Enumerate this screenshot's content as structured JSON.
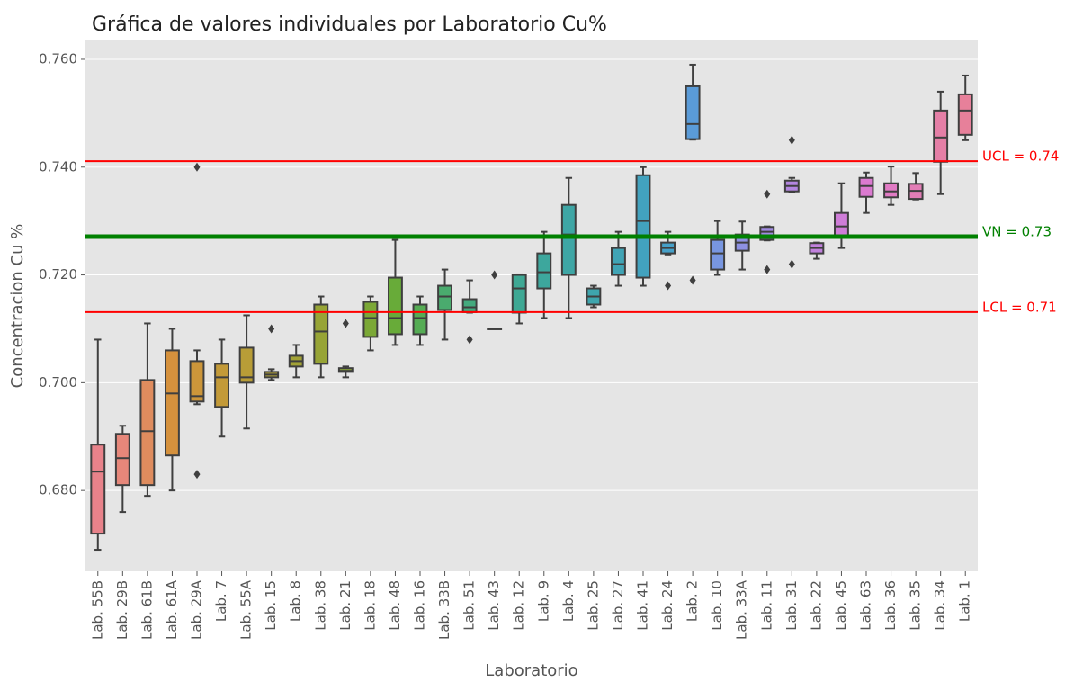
{
  "chart_data": {
    "type": "box",
    "title": "Gráfica de valores individuales por Laboratorio Cu%",
    "xlabel": "Laboratorio",
    "ylabel": "Concentracion Cu %",
    "categories": [
      "Lab. 55B",
      "Lab. 29B",
      "Lab. 61B",
      "Lab. 61A",
      "Lab. 29A",
      "Lab. 7",
      "Lab. 55A",
      "Lab. 15",
      "Lab. 8",
      "Lab. 38",
      "Lab. 21",
      "Lab. 18",
      "Lab. 48",
      "Lab. 16",
      "Lab. 33B",
      "Lab. 51",
      "Lab. 43",
      "Lab. 12",
      "Lab. 9",
      "Lab. 4",
      "Lab. 25",
      "Lab. 27",
      "Lab. 41",
      "Lab. 24",
      "Lab. 2",
      "Lab. 10",
      "Lab. 33A",
      "Lab. 11",
      "Lab. 31",
      "Lab. 22",
      "Lab. 45",
      "Lab. 63",
      "Lab. 36",
      "Lab. 35",
      "Lab. 34",
      "Lab. 1"
    ],
    "boxes": [
      {
        "whislo": 0.669,
        "q1": 0.672,
        "med": 0.6835,
        "q3": 0.6885,
        "whishi": 0.708,
        "fliers": []
      },
      {
        "whislo": 0.676,
        "q1": 0.681,
        "med": 0.686,
        "q3": 0.6905,
        "whishi": 0.692,
        "fliers": []
      },
      {
        "whislo": 0.679,
        "q1": 0.681,
        "med": 0.691,
        "q3": 0.7005,
        "whishi": 0.711,
        "fliers": []
      },
      {
        "whislo": 0.68,
        "q1": 0.6865,
        "med": 0.698,
        "q3": 0.706,
        "whishi": 0.71,
        "fliers": []
      },
      {
        "whislo": 0.696,
        "q1": 0.6965,
        "med": 0.6975,
        "q3": 0.704,
        "whishi": 0.706,
        "fliers": [
          0.683,
          0.74
        ]
      },
      {
        "whislo": 0.69,
        "q1": 0.6955,
        "med": 0.701,
        "q3": 0.7035,
        "whishi": 0.708,
        "fliers": []
      },
      {
        "whislo": 0.6915,
        "q1": 0.7,
        "med": 0.701,
        "q3": 0.7065,
        "whishi": 0.7125,
        "fliers": []
      },
      {
        "whislo": 0.7005,
        "q1": 0.701,
        "med": 0.7015,
        "q3": 0.702,
        "whishi": 0.7025,
        "fliers": [
          0.71
        ]
      },
      {
        "whislo": 0.701,
        "q1": 0.703,
        "med": 0.704,
        "q3": 0.705,
        "whishi": 0.707,
        "fliers": []
      },
      {
        "whislo": 0.701,
        "q1": 0.7035,
        "med": 0.7095,
        "q3": 0.7145,
        "whishi": 0.716,
        "fliers": []
      },
      {
        "whislo": 0.701,
        "q1": 0.702,
        "med": 0.7022,
        "q3": 0.7027,
        "whishi": 0.703,
        "fliers": [
          0.711
        ]
      },
      {
        "whislo": 0.706,
        "q1": 0.7085,
        "med": 0.712,
        "q3": 0.715,
        "whishi": 0.716,
        "fliers": []
      },
      {
        "whislo": 0.707,
        "q1": 0.709,
        "med": 0.712,
        "q3": 0.7195,
        "whishi": 0.7265,
        "fliers": []
      },
      {
        "whislo": 0.707,
        "q1": 0.709,
        "med": 0.712,
        "q3": 0.7145,
        "whishi": 0.716,
        "fliers": []
      },
      {
        "whislo": 0.708,
        "q1": 0.7135,
        "med": 0.716,
        "q3": 0.718,
        "whishi": 0.721,
        "fliers": []
      },
      {
        "whislo": 0.713,
        "q1": 0.7131,
        "med": 0.714,
        "q3": 0.7155,
        "whishi": 0.719,
        "fliers": [
          0.708
        ]
      },
      {
        "whislo": 0.71,
        "q1": 0.71,
        "med": 0.71,
        "q3": 0.71,
        "whishi": 0.71,
        "fliers": [
          0.72
        ]
      },
      {
        "whislo": 0.711,
        "q1": 0.713,
        "med": 0.7175,
        "q3": 0.72,
        "whishi": 0.7201,
        "fliers": []
      },
      {
        "whislo": 0.712,
        "q1": 0.7175,
        "med": 0.7205,
        "q3": 0.724,
        "whishi": 0.728,
        "fliers": []
      },
      {
        "whislo": 0.712,
        "q1": 0.72,
        "med": 0.7275,
        "q3": 0.733,
        "whishi": 0.738,
        "fliers": []
      },
      {
        "whislo": 0.714,
        "q1": 0.7145,
        "med": 0.716,
        "q3": 0.7175,
        "whishi": 0.718,
        "fliers": []
      },
      {
        "whislo": 0.718,
        "q1": 0.72,
        "med": 0.722,
        "q3": 0.725,
        "whishi": 0.728,
        "fliers": []
      },
      {
        "whislo": 0.718,
        "q1": 0.7195,
        "med": 0.73,
        "q3": 0.7385,
        "whishi": 0.74,
        "fliers": []
      },
      {
        "whislo": 0.7238,
        "q1": 0.724,
        "med": 0.725,
        "q3": 0.726,
        "whishi": 0.728,
        "fliers": [
          0.718
        ]
      },
      {
        "whislo": 0.7451,
        "q1": 0.7452,
        "med": 0.748,
        "q3": 0.755,
        "whishi": 0.759,
        "fliers": [
          0.719
        ]
      },
      {
        "whislo": 0.72,
        "q1": 0.721,
        "med": 0.724,
        "q3": 0.7265,
        "whishi": 0.73,
        "fliers": []
      },
      {
        "whislo": 0.721,
        "q1": 0.7245,
        "med": 0.726,
        "q3": 0.7275,
        "whishi": 0.7299,
        "fliers": []
      },
      {
        "whislo": 0.7264,
        "q1": 0.7265,
        "med": 0.728,
        "q3": 0.7289,
        "whishi": 0.729,
        "fliers": [
          0.735,
          0.721
        ]
      },
      {
        "whislo": 0.7354,
        "q1": 0.7355,
        "med": 0.7365,
        "q3": 0.7375,
        "whishi": 0.738,
        "fliers": [
          0.745,
          0.722
        ]
      },
      {
        "whislo": 0.723,
        "q1": 0.724,
        "med": 0.725,
        "q3": 0.7259,
        "whishi": 0.726,
        "fliers": []
      },
      {
        "whislo": 0.725,
        "q1": 0.727,
        "med": 0.729,
        "q3": 0.7315,
        "whishi": 0.737,
        "fliers": []
      },
      {
        "whislo": 0.7315,
        "q1": 0.7345,
        "med": 0.7365,
        "q3": 0.738,
        "whishi": 0.739,
        "fliers": []
      },
      {
        "whislo": 0.733,
        "q1": 0.7344,
        "med": 0.7355,
        "q3": 0.737,
        "whishi": 0.7401,
        "fliers": []
      },
      {
        "whislo": 0.734,
        "q1": 0.7341,
        "med": 0.7356,
        "q3": 0.7369,
        "whishi": 0.7389,
        "fliers": []
      },
      {
        "whislo": 0.735,
        "q1": 0.741,
        "med": 0.7455,
        "q3": 0.7505,
        "whishi": 0.754,
        "fliers": []
      },
      {
        "whislo": 0.745,
        "q1": 0.746,
        "med": 0.7505,
        "q3": 0.7535,
        "whishi": 0.757,
        "fliers": []
      }
    ],
    "colors": [
      "#e8828a",
      "#e6877a",
      "#df8c5e",
      "#d5913d",
      "#cc963a",
      "#c39a38",
      "#b89d37",
      "#ad9f37",
      "#a2a236",
      "#97a436",
      "#8aa636",
      "#7ba836",
      "#68ab39",
      "#55ac54",
      "#4aab6e",
      "#44aa7e",
      "#41a98a",
      "#3ea894",
      "#3da79d",
      "#3ea6a5",
      "#3ea5ad",
      "#40a4b5",
      "#42a2be",
      "#46a0c8",
      "#5a9bd8",
      "#7896e0",
      "#8e91e2",
      "#a18be2",
      "#b386e0",
      "#c181dd",
      "#cf7dd8",
      "#db7ad0",
      "#e17bc4",
      "#e37db6",
      "#e47fa6",
      "#e7809a"
    ],
    "ylim": [
      0.665,
      0.7635
    ],
    "yticks": [
      {
        "value": 0.68,
        "label": "0.680"
      },
      {
        "value": 0.7,
        "label": "0.700"
      },
      {
        "value": 0.72,
        "label": "0.720"
      },
      {
        "value": 0.74,
        "label": "0.740"
      },
      {
        "value": 0.76,
        "label": "0.760"
      }
    ],
    "grid": true,
    "hlines": [
      {
        "value": 0.7411,
        "label": "UCL = 0.74",
        "color": "#ff0000",
        "width": 2
      },
      {
        "value": 0.7271,
        "label": "VN = 0.73",
        "color": "#008000",
        "width": 5
      },
      {
        "value": 0.7131,
        "label": "LCL = 0.71",
        "color": "#ff0000",
        "width": 2
      }
    ]
  }
}
